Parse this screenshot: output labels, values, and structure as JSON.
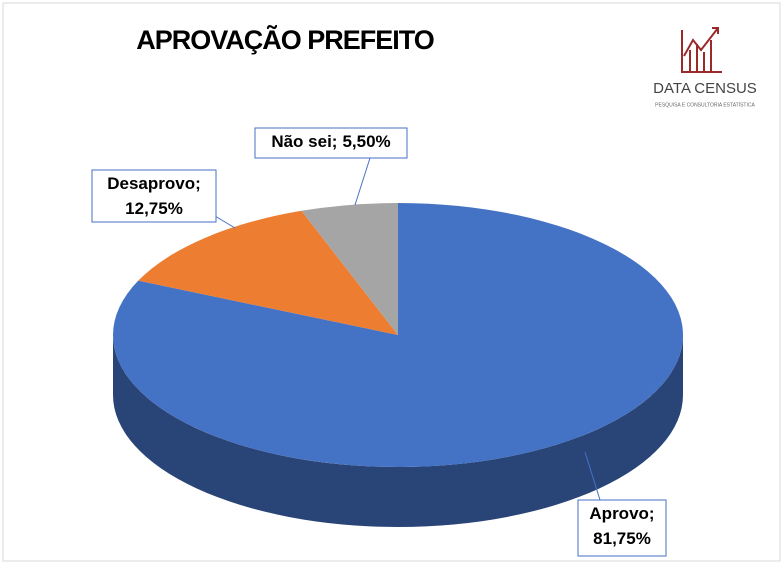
{
  "chart_data": {
    "type": "pie3d",
    "title": "APROVAÇÃO PREFEITO",
    "categories": [
      "Aprovo;",
      "Desaprovo;",
      "Não sei;"
    ],
    "values": [
      81.75,
      12.75,
      5.5
    ],
    "value_labels": [
      "81,75%",
      "12,75%",
      "5,50%"
    ],
    "colors": [
      "#4472c4",
      "#ed7d31",
      "#a5a5a5"
    ]
  },
  "logo": {
    "name": "DATA CENSUS",
    "tagline": "PESQUISA E CONSULTORIA ESTATÍSTICA"
  }
}
